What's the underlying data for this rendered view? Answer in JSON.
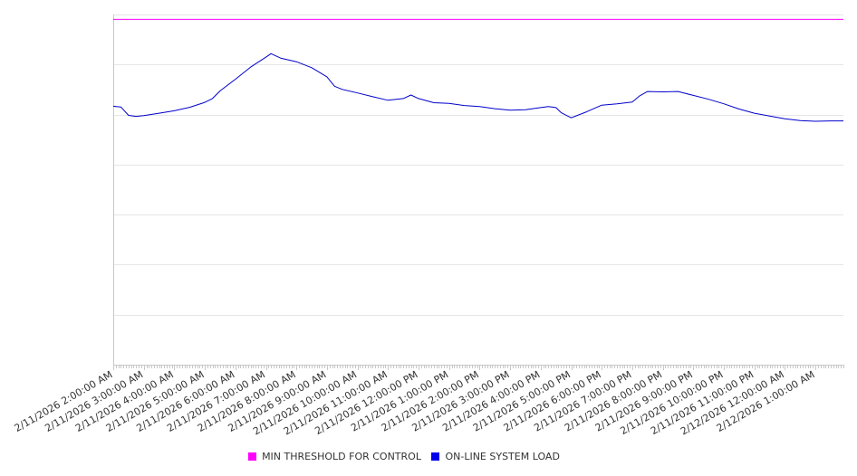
{
  "chart_data": {
    "type": "line",
    "title": "",
    "xlabel": "",
    "ylabel": "",
    "x_tick_labels": [
      "2/11/2026 2:00:00 AM",
      "2/11/2026 3:00:00 AM",
      "2/11/2026 4:00:00 AM",
      "2/11/2026 5:00:00 AM",
      "2/11/2026 6:00:00 AM",
      "2/11/2026 7:00:00 AM",
      "2/11/2026 8:00:00 AM",
      "2/11/2026 9:00:00 AM",
      "2/11/2026 10:00:00 AM",
      "2/11/2026 11:00:00 AM",
      "2/11/2026 12:00:00 PM",
      "2/11/2026 1:00:00 PM",
      "2/11/2026 2:00:00 PM",
      "2/11/2026 3:00:00 PM",
      "2/11/2026 4:00:00 PM",
      "2/11/2026 5:00:00 PM",
      "2/11/2026 6:00:00 PM",
      "2/11/2026 7:00:00 PM",
      "2/11/2026 8:00:00 PM",
      "2/11/2026 9:00:00 PM",
      "2/11/2026 10:00:00 PM",
      "2/11/2026 11:00:00 PM",
      "2/12/2026 12:00:00 AM",
      "2/12/2026 1:00:00 AM"
    ],
    "x_range": [
      "2/11/2026 2:00:00 AM",
      "2/12/2026 1:55:00 AM"
    ],
    "y_axis_tick_labels_visible": false,
    "y_gridline_count": 7,
    "grid": true,
    "legend_position": "bottom-center",
    "series": [
      {
        "name": "MIN THRESHOLD FOR CONTROL",
        "color": "#ff00ff",
        "x": [
          "2/11/2026 2:00:00 AM",
          "2/12/2026 1:55:00 AM"
        ],
        "y": [
          0.986,
          0.986
        ]
      },
      {
        "name": "ON-LINE SYSTEM LOAD",
        "color": "#0000cc",
        "x": [
          "2/11/2026 2:00:00 AM",
          "2/11/2026 2:15:00 AM",
          "2/11/2026 2:30:00 AM",
          "2/11/2026 2:45:00 AM",
          "2/11/2026 3:00:00 AM",
          "2/11/2026 3:30:00 AM",
          "2/11/2026 4:00:00 AM",
          "2/11/2026 4:30:00 AM",
          "2/11/2026 5:00:00 AM",
          "2/11/2026 5:15:00 AM",
          "2/11/2026 5:30:00 AM",
          "2/11/2026 6:00:00 AM",
          "2/11/2026 6:30:00 AM",
          "2/11/2026 7:00:00 AM",
          "2/11/2026 7:10:00 AM",
          "2/11/2026 7:30:00 AM",
          "2/11/2026 8:00:00 AM",
          "2/11/2026 8:30:00 AM",
          "2/11/2026 9:00:00 AM",
          "2/11/2026 9:15:00 AM",
          "2/11/2026 9:30:00 AM",
          "2/11/2026 10:00:00 AM",
          "2/11/2026 10:30:00 AM",
          "2/11/2026 11:00:00 AM",
          "2/11/2026 11:30:00 AM",
          "2/11/2026 11:45:00 AM",
          "2/11/2026 12:00:00 PM",
          "2/11/2026 12:30:00 PM",
          "2/11/2026 1:00:00 PM",
          "2/11/2026 1:30:00 PM",
          "2/11/2026 2:00:00 PM",
          "2/11/2026 2:30:00 PM",
          "2/11/2026 3:00:00 PM",
          "2/11/2026 3:30:00 PM",
          "2/11/2026 4:00:00 PM",
          "2/11/2026 4:15:00 PM",
          "2/11/2026 4:30:00 PM",
          "2/11/2026 4:40:00 PM",
          "2/11/2026 5:00:00 PM",
          "2/11/2026 5:30:00 PM",
          "2/11/2026 6:00:00 PM",
          "2/11/2026 6:30:00 PM",
          "2/11/2026 7:00:00 PM",
          "2/11/2026 7:15:00 PM",
          "2/11/2026 7:30:00 PM",
          "2/11/2026 8:00:00 PM",
          "2/11/2026 8:30:00 PM",
          "2/11/2026 9:00:00 PM",
          "2/11/2026 9:30:00 PM",
          "2/11/2026 10:00:00 PM",
          "2/11/2026 10:30:00 PM",
          "2/11/2026 11:00:00 PM",
          "2/11/2026 11:30:00 PM",
          "2/12/2026 12:00:00 AM",
          "2/12/2026 12:30:00 AM",
          "2/12/2026 1:00:00 AM",
          "2/12/2026 1:30:00 AM",
          "2/12/2026 1:55:00 AM"
        ],
        "y": [
          0.738,
          0.736,
          0.712,
          0.709,
          0.711,
          0.718,
          0.725,
          0.735,
          0.749,
          0.76,
          0.782,
          0.815,
          0.85,
          0.878,
          0.888,
          0.875,
          0.865,
          0.848,
          0.822,
          0.795,
          0.786,
          0.776,
          0.765,
          0.755,
          0.76,
          0.77,
          0.76,
          0.748,
          0.746,
          0.74,
          0.737,
          0.731,
          0.727,
          0.728,
          0.734,
          0.737,
          0.734,
          0.72,
          0.705,
          0.722,
          0.741,
          0.745,
          0.75,
          0.768,
          0.78,
          0.779,
          0.78,
          0.769,
          0.758,
          0.745,
          0.73,
          0.718,
          0.71,
          0.702,
          0.697,
          0.695,
          0.696,
          0.696
        ]
      }
    ]
  }
}
